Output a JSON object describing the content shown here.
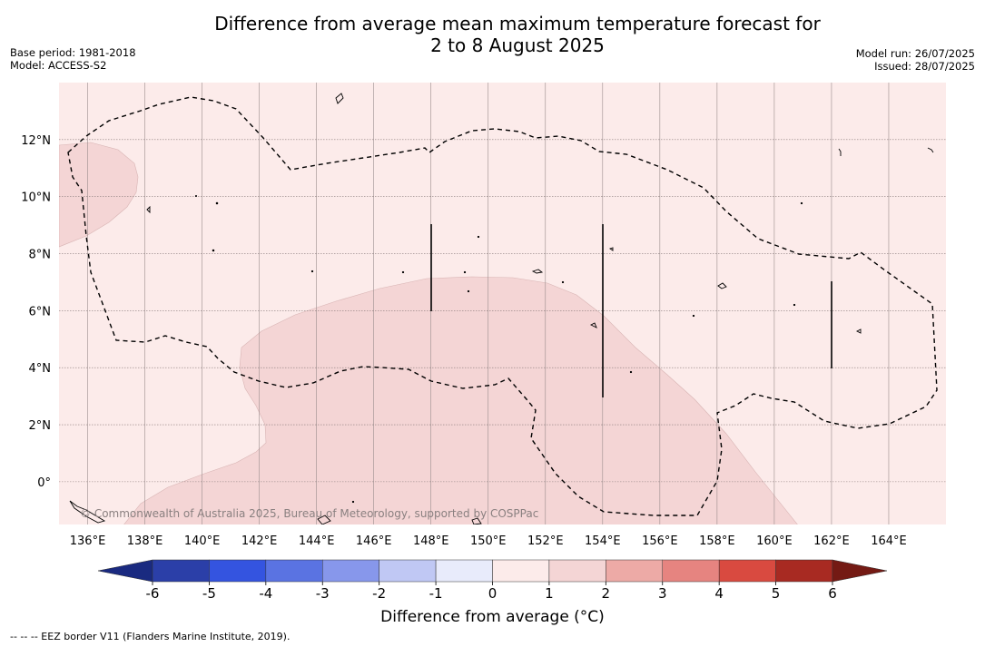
{
  "title_line1": "Difference from average mean maximum temperature forecast for",
  "title_line2": "2 to 8 August 2025",
  "base_period": "Base period: 1981-2018",
  "model": "Model: ACCESS-S2",
  "model_run": "Model run: 26/07/2025",
  "issued": "Issued: 28/07/2025",
  "copyright": "© Commonwealth of Australia 2025, Bureau of Meteorology, supported by COSPPac",
  "colorbar_title": "Difference from average (°C)",
  "footnote": "--  --  -- EEZ border V11 (Flanders Marine Institute, 2019).",
  "map": {
    "lon_range": [
      135,
      166
    ],
    "lat_range": [
      -1.5,
      14
    ],
    "lon_ticks": [
      "136°E",
      "138°E",
      "140°E",
      "142°E",
      "144°E",
      "146°E",
      "148°E",
      "150°E",
      "152°E",
      "154°E",
      "156°E",
      "158°E",
      "160°E",
      "162°E",
      "164°E"
    ],
    "lat_ticks": [
      "0°",
      "2°N",
      "4°N",
      "6°N",
      "8°N",
      "10°N",
      "12°N"
    ],
    "background_class": "0 to 1",
    "shaded_regions": [
      {
        "class": "1 to 2",
        "location": "west edge near 10–12°N"
      },
      {
        "class": "1 to 2",
        "location": "south-central, 142–161°E, below ~7°N"
      }
    ]
  },
  "colorbar": {
    "ticks": [
      "-6",
      "-5",
      "-4",
      "-3",
      "-2",
      "-1",
      "0",
      "1",
      "2",
      "3",
      "4",
      "5",
      "6"
    ],
    "colors": [
      "#2b3fa8",
      "#3454e0",
      "#5a73e2",
      "#8797eb",
      "#c0c8f4",
      "#e8ebfb",
      "#fcebea",
      "#f4d5d5",
      "#edaaa6",
      "#e68480",
      "#d94a40",
      "#a82a22"
    ],
    "under_color": "#1a2a80",
    "over_color": "#741a14"
  }
}
